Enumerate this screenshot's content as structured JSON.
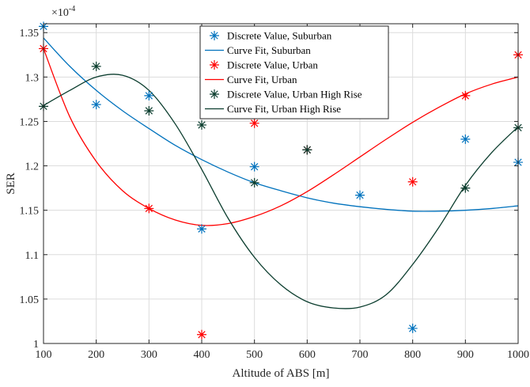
{
  "chart_data": {
    "type": "line",
    "xlabel": "Altitude of ABS [m]",
    "ylabel": "SER",
    "exponent_label": "×10",
    "exponent_power": "-4",
    "xlim": [
      100,
      1000
    ],
    "ylim": [
      1.0,
      1.36
    ],
    "x_ticks": [
      100,
      200,
      300,
      400,
      500,
      600,
      700,
      800,
      900,
      1000
    ],
    "y_ticks": [
      1,
      1.05,
      1.1,
      1.15,
      1.2,
      1.25,
      1.3,
      1.35
    ],
    "y_tick_labels": [
      "1",
      "1.05",
      "1.1",
      "1.15",
      "1.2",
      "1.25",
      "1.3",
      "1.35"
    ],
    "grid": true,
    "legend_position": "top-center",
    "colors": {
      "suburban": "#0072BD",
      "urban": "#FF0000",
      "high_rise": "#0B3D2E"
    },
    "series": [
      {
        "name": "Discrete Value, Suburban",
        "kind": "markers",
        "color_key": "suburban",
        "x": [
          100,
          200,
          300,
          400,
          500,
          600,
          700,
          800,
          900,
          1000
        ],
        "values": [
          1.357,
          1.269,
          1.279,
          1.129,
          1.199,
          1.218,
          1.167,
          1.017,
          1.23,
          1.204
        ]
      },
      {
        "name": "Curve Fit, Suburban",
        "kind": "line",
        "color_key": "suburban",
        "x": [
          100,
          150,
          200,
          250,
          300,
          350,
          400,
          450,
          500,
          550,
          600,
          650,
          700,
          750,
          800,
          850,
          900,
          950,
          1000
        ],
        "values": [
          1.344,
          1.312,
          1.285,
          1.262,
          1.242,
          1.223,
          1.207,
          1.193,
          1.181,
          1.172,
          1.164,
          1.158,
          1.154,
          1.151,
          1.149,
          1.149,
          1.15,
          1.152,
          1.155
        ]
      },
      {
        "name": "Discrete Value, Urban",
        "kind": "markers",
        "color_key": "urban",
        "x": [
          100,
          300,
          400,
          500,
          600,
          800,
          900,
          1000
        ],
        "values": [
          1.332,
          1.152,
          1.01,
          1.248,
          1.218,
          1.182,
          1.279,
          1.325
        ]
      },
      {
        "name": "Curve Fit, Urban",
        "kind": "line",
        "color_key": "urban",
        "x": [
          100,
          150,
          200,
          250,
          300,
          350,
          400,
          450,
          500,
          550,
          600,
          650,
          700,
          750,
          800,
          850,
          900,
          950,
          1000
        ],
        "values": [
          1.332,
          1.255,
          1.205,
          1.172,
          1.152,
          1.139,
          1.133,
          1.135,
          1.143,
          1.155,
          1.171,
          1.19,
          1.21,
          1.23,
          1.249,
          1.266,
          1.281,
          1.292,
          1.3
        ]
      },
      {
        "name": "Discrete Value, Urban High Rise",
        "kind": "markers",
        "color_key": "high_rise",
        "x": [
          100,
          200,
          300,
          400,
          500,
          600,
          900,
          1000
        ],
        "values": [
          1.267,
          1.312,
          1.262,
          1.246,
          1.181,
          1.218,
          1.175,
          1.243
        ]
      },
      {
        "name": "Curve Fit, Urban High Rise",
        "kind": "line",
        "color_key": "high_rise",
        "x": [
          100,
          150,
          200,
          250,
          300,
          350,
          400,
          450,
          500,
          550,
          600,
          650,
          700,
          750,
          800,
          850,
          900,
          950,
          1000
        ],
        "values": [
          1.268,
          1.285,
          1.3,
          1.302,
          1.285,
          1.247,
          1.196,
          1.141,
          1.097,
          1.066,
          1.047,
          1.04,
          1.041,
          1.055,
          1.089,
          1.131,
          1.178,
          1.215,
          1.244
        ]
      }
    ]
  }
}
